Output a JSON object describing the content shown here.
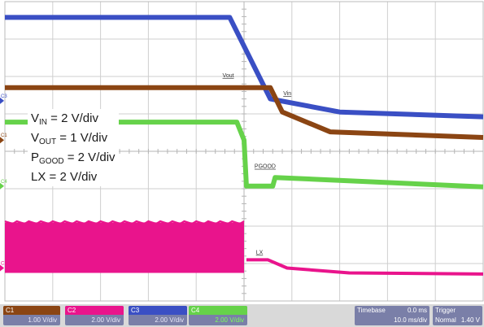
{
  "chart_data": {
    "type": "line",
    "title": "",
    "xlabel": "",
    "ylabel": "",
    "grid": true,
    "grid_divisions": {
      "x": 10,
      "y": 8
    },
    "series": [
      {
        "name": "Vin",
        "channel": "C3",
        "color": "#3a4fc4",
        "points": [
          [
            0,
            7.58
          ],
          [
            4.7,
            7.58
          ],
          [
            5.55,
            5.4
          ],
          [
            7,
            5.05
          ],
          [
            10,
            4.92
          ]
        ]
      },
      {
        "name": "Vout",
        "channel": "C1",
        "color": "#8b4513",
        "points": [
          [
            0,
            5.7
          ],
          [
            5.55,
            5.7
          ],
          [
            5.8,
            5.05
          ],
          [
            6.8,
            4.52
          ],
          [
            10,
            4.37
          ]
        ]
      },
      {
        "name": "PGOOD",
        "channel": "C4",
        "color": "#66d24a",
        "points": [
          [
            0,
            4.78
          ],
          [
            4.85,
            4.78
          ],
          [
            5.0,
            4.3
          ],
          [
            5.05,
            3.07
          ],
          [
            5.6,
            3.07
          ],
          [
            5.65,
            3.3
          ],
          [
            10,
            3.05
          ]
        ]
      },
      {
        "name": "LX",
        "channel": "C2",
        "color": "#e9148c",
        "type": "switching",
        "band_top": 2.1,
        "band_bottom": 0.75,
        "band_end": 5.0,
        "points": [
          [
            5.05,
            1.1
          ],
          [
            5.5,
            1.1
          ],
          [
            5.9,
            0.88
          ],
          [
            7.2,
            0.75
          ],
          [
            10,
            0.72
          ]
        ]
      }
    ],
    "trace_labels": {
      "vin": "Vin",
      "vout": "Vout",
      "pgood": "PGOOD",
      "lx": "LX"
    }
  },
  "scales": {
    "vin": {
      "name": "V",
      "sub": "IN",
      "value": " = 2 V/div"
    },
    "vout": {
      "name": "V",
      "sub": "OUT",
      "value": " = 1 V/div"
    },
    "pgood": {
      "name": "P",
      "sub": "GOOD",
      "value": " = 2 V/div"
    },
    "lx": {
      "label": "LX = 2 V/div"
    }
  },
  "status_bar": {
    "channels": [
      {
        "id": "C1",
        "vdiv": "1.00 V/div",
        "color": "#8b4513"
      },
      {
        "id": "C2",
        "vdiv": "2.00 V/div",
        "color": "#e9148c"
      },
      {
        "id": "C3",
        "vdiv": "2.00 V/div",
        "color": "#3a4fc4"
      },
      {
        "id": "C4",
        "vdiv": "2.00 V/div",
        "color": "#66d24a"
      }
    ],
    "timebase": {
      "label": "Timebase",
      "offset": "0.0 ms",
      "value": "10.0 ms/div"
    },
    "trigger": {
      "label": "Trigger",
      "mode": "Normal",
      "level": "1.40 V"
    }
  }
}
